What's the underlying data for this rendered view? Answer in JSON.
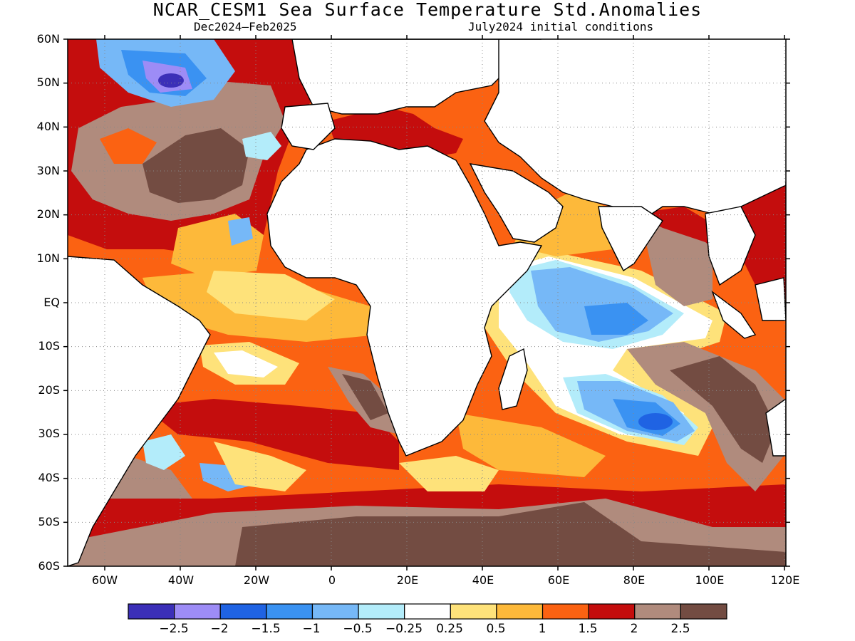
{
  "title": "NCAR_CESM1 Sea Surface Temperature Std.Anomalies",
  "subtitle_left": "Dec2024–Feb2025",
  "subtitle_right": "July2024 initial conditions",
  "lat_labels": [
    "60N",
    "50N",
    "40N",
    "30N",
    "20N",
    "10N",
    "EQ",
    "10S",
    "20S",
    "30S",
    "40S",
    "50S",
    "60S"
  ],
  "lon_labels": [
    "60W",
    "40W",
    "20W",
    "0",
    "20E",
    "40E",
    "60E",
    "80E",
    "100E",
    "120E"
  ],
  "colorbar": {
    "colors": [
      "#3b2fb8",
      "#9d8cf6",
      "#1f63e3",
      "#3a92f2",
      "#76b8f7",
      "#b3ecfa",
      "#ffffff",
      "#fee27a",
      "#fdb93a",
      "#fb6212",
      "#c40d0d",
      "#b08b7d",
      "#734c42"
    ],
    "labels": [
      "−2.5",
      "−2",
      "−1.5",
      "−1",
      "−0.5",
      "−0.25",
      "0.25",
      "0.5",
      "1",
      "1.5",
      "2",
      "2.5"
    ]
  }
}
